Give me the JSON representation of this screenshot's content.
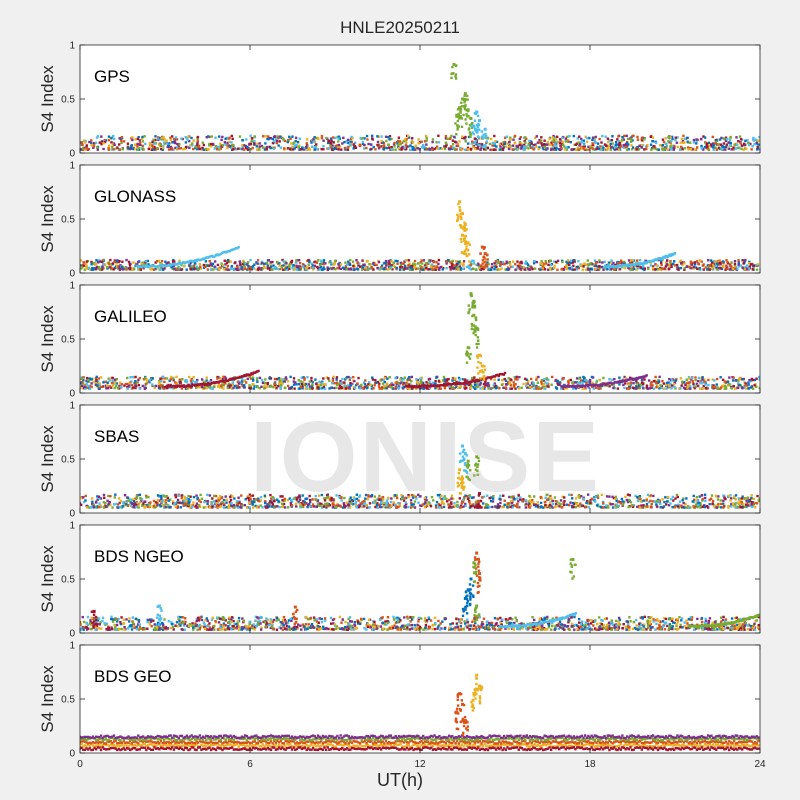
{
  "figure": {
    "title": "HNLE20250211",
    "xlabel": "UT(h)",
    "watermark": "IONISE"
  },
  "colors": {
    "series": [
      "#0072bd",
      "#d95319",
      "#edb120",
      "#7e2f8e",
      "#77ac30",
      "#4dbeee",
      "#a2142f"
    ],
    "axis": "#262626",
    "panel_bg": "#ffffff",
    "figure_bg": "#f0f0f0"
  },
  "chart_data": [
    {
      "type": "scatter",
      "title": "GPS",
      "ylabel": "S4 Index",
      "xlim": [
        0,
        24
      ],
      "ylim": [
        0,
        1
      ],
      "xticks": [
        0,
        6,
        12,
        18,
        24
      ],
      "yticks": [
        0,
        0.5,
        1
      ],
      "ytick_labels": [
        "0",
        "0.5",
        "1"
      ],
      "grid": false,
      "background_level": [
        0.03,
        0.16
      ],
      "event": {
        "window": [
          13.1,
          14.4
        ],
        "points": [
          {
            "x": 13.2,
            "y": 0.82,
            "color": "#77ac30"
          },
          {
            "x": 13.3,
            "y": 0.35,
            "color": "#77ac30"
          },
          {
            "x": 13.4,
            "y": 0.42,
            "color": "#77ac30"
          },
          {
            "x": 13.5,
            "y": 0.5,
            "color": "#77ac30"
          },
          {
            "x": 13.6,
            "y": 0.55,
            "color": "#77ac30"
          },
          {
            "x": 13.7,
            "y": 0.4,
            "color": "#77ac30"
          },
          {
            "x": 13.8,
            "y": 0.32,
            "color": "#77ac30"
          },
          {
            "x": 13.9,
            "y": 0.25,
            "color": "#4dbeee"
          },
          {
            "x": 14.0,
            "y": 0.38,
            "color": "#4dbeee"
          },
          {
            "x": 14.1,
            "y": 0.3,
            "color": "#4dbeee"
          },
          {
            "x": 14.3,
            "y": 0.22,
            "color": "#4dbeee"
          }
        ]
      }
    },
    {
      "type": "scatter",
      "title": "GLONASS",
      "ylabel": "S4 Index",
      "xlim": [
        0,
        24
      ],
      "ylim": [
        0,
        1
      ],
      "xticks": [
        0,
        6,
        12,
        18,
        24
      ],
      "yticks": [
        0,
        0.5,
        1
      ],
      "ytick_labels": [
        "0",
        "0.5",
        "1"
      ],
      "grid": false,
      "background_level": [
        0.03,
        0.12
      ],
      "arcs": [
        {
          "x0": 2.0,
          "x1": 5.6,
          "peak": 0.24,
          "color": "#4dbeee"
        },
        {
          "x0": 18.5,
          "x1": 21.0,
          "peak": 0.18,
          "color": "#4dbeee"
        }
      ],
      "event": {
        "window": [
          13.2,
          14.5
        ],
        "points": [
          {
            "x": 13.4,
            "y": 0.66,
            "color": "#edb120"
          },
          {
            "x": 13.5,
            "y": 0.55,
            "color": "#edb120"
          },
          {
            "x": 13.6,
            "y": 0.45,
            "color": "#edb120"
          },
          {
            "x": 13.5,
            "y": 0.35,
            "color": "#edb120"
          },
          {
            "x": 13.7,
            "y": 0.28,
            "color": "#edb120"
          },
          {
            "x": 14.2,
            "y": 0.24,
            "color": "#d95319"
          },
          {
            "x": 14.3,
            "y": 0.18,
            "color": "#d95319"
          }
        ]
      }
    },
    {
      "type": "scatter",
      "title": "GALILEO",
      "ylabel": "S4 Index",
      "xlim": [
        0,
        24
      ],
      "ylim": [
        0,
        1
      ],
      "xticks": [
        0,
        6,
        12,
        18,
        24
      ],
      "yticks": [
        0,
        0.5,
        1
      ],
      "ytick_labels": [
        "0",
        "0.5",
        "1"
      ],
      "grid": false,
      "background_level": [
        0.04,
        0.15
      ],
      "arcs": [
        {
          "x0": 3.0,
          "x1": 6.3,
          "peak": 0.2,
          "color": "#a2142f"
        },
        {
          "x0": 11.5,
          "x1": 15.0,
          "peak": 0.18,
          "color": "#a2142f"
        },
        {
          "x0": 17.0,
          "x1": 20.0,
          "peak": 0.16,
          "color": "#7e2f8e"
        }
      ],
      "event": {
        "window": [
          13.6,
          14.3
        ],
        "points": [
          {
            "x": 13.8,
            "y": 0.92,
            "color": "#77ac30"
          },
          {
            "x": 13.9,
            "y": 0.85,
            "color": "#77ac30"
          },
          {
            "x": 13.9,
            "y": 0.72,
            "color": "#77ac30"
          },
          {
            "x": 14.0,
            "y": 0.6,
            "color": "#77ac30"
          },
          {
            "x": 13.7,
            "y": 0.42,
            "color": "#77ac30"
          },
          {
            "x": 14.1,
            "y": 0.35,
            "color": "#edb120"
          },
          {
            "x": 14.2,
            "y": 0.25,
            "color": "#edb120"
          }
        ]
      }
    },
    {
      "type": "scatter",
      "title": "SBAS",
      "ylabel": "S4 Index",
      "xlim": [
        0,
        24
      ],
      "ylim": [
        0,
        1
      ],
      "xticks": [
        0,
        6,
        12,
        18,
        24
      ],
      "yticks": [
        0,
        0.5,
        1
      ],
      "ytick_labels": [
        "0",
        "0.5",
        "1"
      ],
      "grid": false,
      "background_level": [
        0.05,
        0.17
      ],
      "event": {
        "window": [
          13.2,
          14.2
        ],
        "points": [
          {
            "x": 13.5,
            "y": 0.62,
            "color": "#4dbeee"
          },
          {
            "x": 13.6,
            "y": 0.55,
            "color": "#4dbeee"
          },
          {
            "x": 13.7,
            "y": 0.48,
            "color": "#77ac30"
          },
          {
            "x": 13.4,
            "y": 0.4,
            "color": "#edb120"
          },
          {
            "x": 13.5,
            "y": 0.32,
            "color": "#edb120"
          },
          {
            "x": 14.0,
            "y": 0.52,
            "color": "#77ac30"
          },
          {
            "x": 14.1,
            "y": 0.18,
            "color": "#a2142f"
          }
        ]
      }
    },
    {
      "type": "scatter",
      "title": "BDS NGEO",
      "ylabel": "S4 Index",
      "xlim": [
        0,
        24
      ],
      "ylim": [
        0,
        1
      ],
      "xticks": [
        0,
        6,
        12,
        18,
        24
      ],
      "yticks": [
        0,
        0.5,
        1
      ],
      "ytick_labels": [
        "0",
        "0.5",
        "1"
      ],
      "grid": false,
      "background_level": [
        0.03,
        0.15
      ],
      "arcs": [
        {
          "x0": 21.5,
          "x1": 24.0,
          "peak": 0.17,
          "color": "#77ac30"
        },
        {
          "x0": 14.8,
          "x1": 17.5,
          "peak": 0.18,
          "color": "#4dbeee"
        }
      ],
      "event": {
        "window": [
          13.4,
          14.3
        ],
        "points": [
          {
            "x": 14.0,
            "y": 0.74,
            "color": "#d95319"
          },
          {
            "x": 13.9,
            "y": 0.65,
            "color": "#77ac30"
          },
          {
            "x": 14.1,
            "y": 0.55,
            "color": "#d95319"
          },
          {
            "x": 13.8,
            "y": 0.5,
            "color": "#0072bd"
          },
          {
            "x": 13.7,
            "y": 0.4,
            "color": "#0072bd"
          },
          {
            "x": 13.6,
            "y": 0.32,
            "color": "#0072bd"
          },
          {
            "x": 14.0,
            "y": 0.25,
            "color": "#77ac30"
          },
          {
            "x": 17.4,
            "y": 0.68,
            "color": "#77ac30"
          },
          {
            "x": 2.8,
            "y": 0.25,
            "color": "#4dbeee"
          },
          {
            "x": 7.6,
            "y": 0.24,
            "color": "#d95319"
          },
          {
            "x": 0.5,
            "y": 0.2,
            "color": "#a2142f"
          }
        ]
      }
    },
    {
      "type": "scatter",
      "title": "BDS GEO",
      "ylabel": "S4 Index",
      "xlim": [
        0,
        24
      ],
      "ylim": [
        0,
        1
      ],
      "xticks": [
        0,
        6,
        12,
        18,
        24
      ],
      "yticks": [
        0,
        0.5,
        1
      ],
      "ytick_labels": [
        "0",
        "0.5",
        "1"
      ],
      "grid": false,
      "flat_tracks": [
        {
          "y": 0.07,
          "color": "#edb120"
        },
        {
          "y": 0.1,
          "color": "#d95319"
        },
        {
          "y": 0.13,
          "color": "#77ac30"
        },
        {
          "y": 0.15,
          "color": "#7e2f8e"
        },
        {
          "y": 0.04,
          "color": "#a2142f"
        }
      ],
      "event": {
        "window": [
          13.2,
          14.4
        ],
        "points": [
          {
            "x": 14.0,
            "y": 0.72,
            "color": "#edb120"
          },
          {
            "x": 14.1,
            "y": 0.62,
            "color": "#edb120"
          },
          {
            "x": 13.9,
            "y": 0.55,
            "color": "#edb120"
          },
          {
            "x": 13.4,
            "y": 0.55,
            "color": "#d95319"
          },
          {
            "x": 13.5,
            "y": 0.45,
            "color": "#d95319"
          },
          {
            "x": 13.3,
            "y": 0.38,
            "color": "#d95319"
          },
          {
            "x": 13.6,
            "y": 0.3,
            "color": "#d95319"
          }
        ]
      }
    }
  ]
}
